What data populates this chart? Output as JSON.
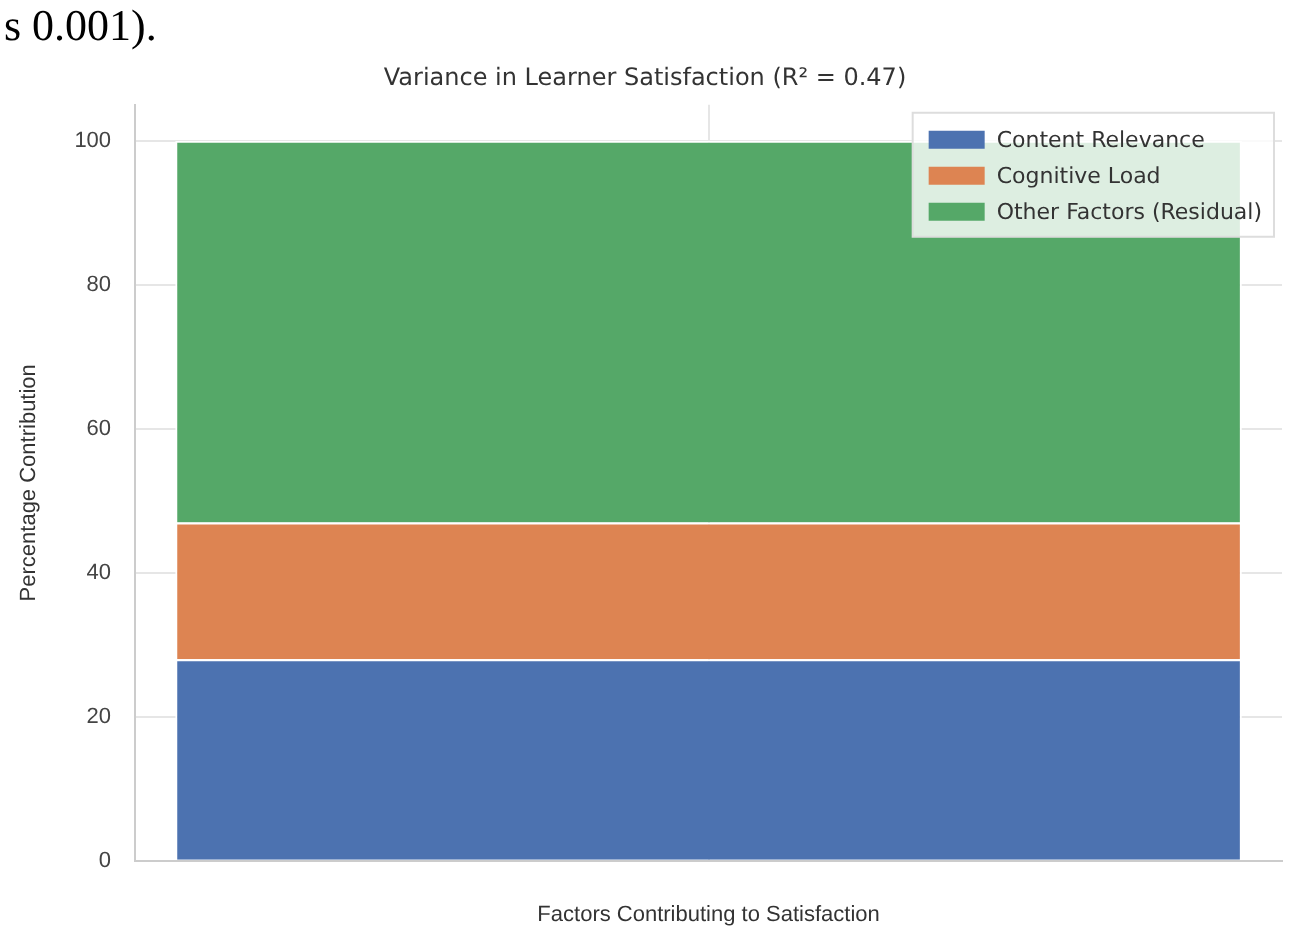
{
  "chart_data": {
    "type": "bar",
    "title": "Variance in Learner Satisfaction (R² = 0.47)",
    "xlabel": "Factors Contributing to Satisfaction",
    "ylabel": "Percentage Contribution",
    "categories": [
      null
    ],
    "stacked": true,
    "series": [
      {
        "name": "Content Relevance",
        "color": "#4c72b0",
        "values": [
          28
        ]
      },
      {
        "name": "Cognitive Load",
        "color": "#dd8452",
        "values": [
          19
        ]
      },
      {
        "name": "Other Factors (Residual)",
        "color": "#55a868",
        "values": [
          53
        ]
      }
    ],
    "ylim": [
      0,
      105
    ],
    "yticks": [
      0,
      20,
      40,
      60,
      80,
      100
    ],
    "grid": true,
    "legend": "top right",
    "annotations": [
      "s 0.001)."
    ]
  }
}
